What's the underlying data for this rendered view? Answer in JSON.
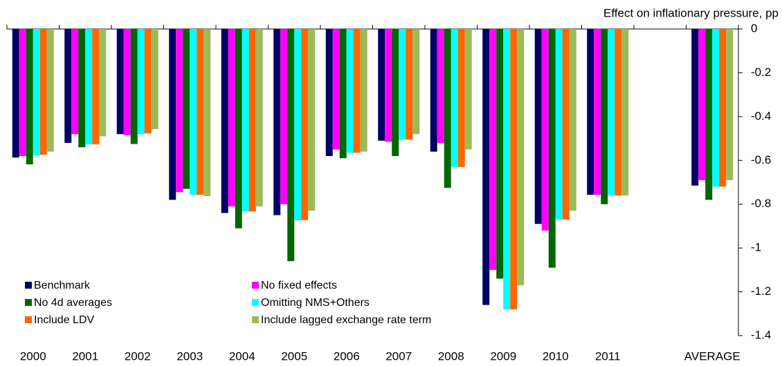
{
  "chart_data": {
    "type": "bar",
    "y_axis_label": "Effect on inflationary pressure, pp",
    "categories": [
      "2000",
      "2001",
      "2002",
      "2003",
      "2004",
      "2005",
      "2006",
      "2007",
      "2008",
      "2009",
      "2010",
      "2011",
      null,
      "AVERAGE"
    ],
    "series": [
      {
        "name": "Benchmark",
        "color": "#000066",
        "values": [
          -0.587,
          -0.52,
          -0.48,
          -0.78,
          -0.84,
          -0.85,
          -0.58,
          -0.51,
          -0.56,
          -1.26,
          -0.89,
          -0.757,
          null,
          -0.715
        ]
      },
      {
        "name": "No fixed effects",
        "color": "#ff00ff",
        "values": [
          -0.58,
          -0.48,
          -0.485,
          -0.745,
          -0.81,
          -0.8,
          -0.55,
          -0.515,
          -0.52,
          -1.1,
          -0.92,
          -0.757,
          null,
          -0.69
        ]
      },
      {
        "name": "No 4d averages",
        "color": "#006600",
        "values": [
          -0.618,
          -0.54,
          -0.525,
          -0.73,
          -0.91,
          -1.06,
          -0.59,
          -0.58,
          -0.725,
          -1.14,
          -1.09,
          -0.8,
          null,
          -0.78
        ]
      },
      {
        "name": "Omitting NMS+Others",
        "color": "#00ffff",
        "values": [
          -0.577,
          -0.527,
          -0.48,
          -0.757,
          -0.833,
          -0.873,
          -0.565,
          -0.505,
          -0.63,
          -1.28,
          -0.87,
          -0.76,
          null,
          -0.72
        ]
      },
      {
        "name": "Include LDV",
        "color": "#ff6600",
        "values": [
          -0.574,
          -0.527,
          -0.477,
          -0.757,
          -0.833,
          -0.873,
          -0.565,
          -0.505,
          -0.63,
          -1.28,
          -0.87,
          -0.76,
          null,
          -0.72
        ]
      },
      {
        "name": "Include lagged exchange rate term",
        "color": "#9bbb59",
        "values": [
          -0.56,
          -0.49,
          -0.457,
          -0.763,
          -0.81,
          -0.83,
          -0.56,
          -0.48,
          -0.55,
          -1.17,
          -0.83,
          -0.76,
          null,
          -0.69
        ]
      }
    ],
    "ylim": [
      -1.4,
      0
    ],
    "yticks": [
      0,
      -0.2,
      -0.4,
      -0.6,
      -0.8,
      -1,
      -1.2,
      -1.4
    ],
    "y_axis_side": "right",
    "legend": "lower left",
    "grid": false
  }
}
